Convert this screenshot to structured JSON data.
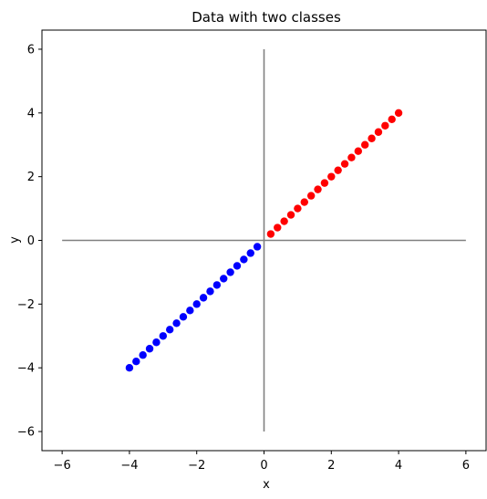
{
  "chart_data": {
    "type": "scatter",
    "title": "Data with two classes",
    "xlabel": "x",
    "ylabel": "y",
    "xlim": [
      -6.6,
      6.6
    ],
    "ylim": [
      -6.6,
      6.6
    ],
    "xticks": [
      -6,
      -4,
      -2,
      0,
      2,
      4,
      6
    ],
    "yticks": [
      -6,
      -4,
      -2,
      0,
      2,
      4,
      6
    ],
    "xtick_labels": [
      "−6",
      "−4",
      "−2",
      "0",
      "2",
      "4",
      "6"
    ],
    "ytick_labels": [
      "−6",
      "−4",
      "−2",
      "0",
      "2",
      "4",
      "6"
    ],
    "grid": false,
    "reference_lines": [
      {
        "orientation": "horizontal",
        "value": 0,
        "from": -6,
        "to": 6,
        "color": "#808080"
      },
      {
        "orientation": "vertical",
        "value": 0,
        "from": -6,
        "to": 6,
        "color": "#808080"
      }
    ],
    "series": [
      {
        "color": "#0000ff",
        "x": [
          -4.0,
          -3.8,
          -3.6,
          -3.4,
          -3.2,
          -3.0,
          -2.8,
          -2.6,
          -2.4,
          -2.2,
          -2.0,
          -1.8,
          -1.6,
          -1.4,
          -1.2,
          -1.0,
          -0.8,
          -0.6,
          -0.4,
          -0.2
        ],
        "y": [
          -4.0,
          -3.8,
          -3.6,
          -3.4,
          -3.2,
          -3.0,
          -2.8,
          -2.6,
          -2.4,
          -2.2,
          -2.0,
          -1.8,
          -1.6,
          -1.4,
          -1.2,
          -1.0,
          -0.8,
          -0.6,
          -0.4,
          -0.2
        ]
      },
      {
        "color": "#ff0000",
        "x": [
          0.2,
          0.4,
          0.6,
          0.8,
          1.0,
          1.2,
          1.4,
          1.6,
          1.8,
          2.0,
          2.2,
          2.4,
          2.6,
          2.8,
          3.0,
          3.2,
          3.4,
          3.6,
          3.8,
          4.0
        ],
        "y": [
          0.2,
          0.4,
          0.6,
          0.8,
          1.0,
          1.2,
          1.4,
          1.6,
          1.8,
          2.0,
          2.2,
          2.4,
          2.6,
          2.8,
          3.0,
          3.2,
          3.4,
          3.6,
          3.8,
          4.0
        ]
      }
    ]
  }
}
